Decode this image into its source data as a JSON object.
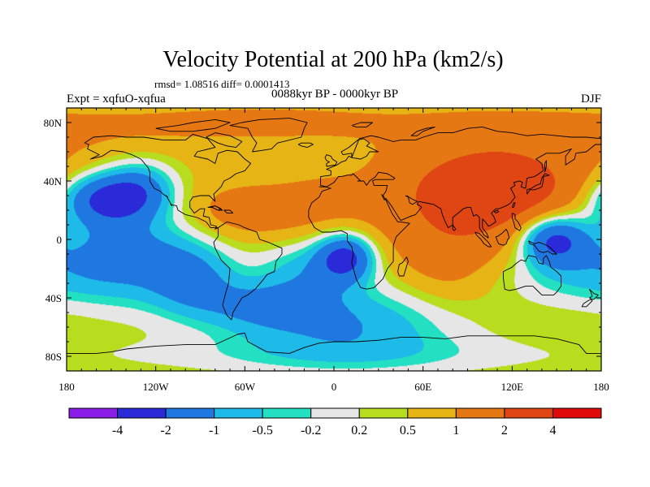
{
  "chart_data": {
    "type": "heatmap",
    "title": "Velocity Potential at 200 hPa (km2/s)",
    "stats": "rmsd= 1.08516 diff= 0.0001413",
    "left_label": "Expt = xqfuO-xqfua",
    "center_label": "0088kyr BP - 0000kyr BP",
    "right_label": "DJF",
    "projection": "cylindrical equidistant",
    "xlim": [
      -180,
      180
    ],
    "ylim": [
      -90,
      90
    ],
    "x_ticks": [
      {
        "value": -180,
        "label": "180"
      },
      {
        "value": -120,
        "label": "120W"
      },
      {
        "value": -60,
        "label": "60W"
      },
      {
        "value": 0,
        "label": "0"
      },
      {
        "value": 60,
        "label": "60E"
      },
      {
        "value": 120,
        "label": "120E"
      },
      {
        "value": 180,
        "label": "180"
      }
    ],
    "y_ticks": [
      {
        "value": 80,
        "label": "80N"
      },
      {
        "value": 40,
        "label": "40N"
      },
      {
        "value": 0,
        "label": "0"
      },
      {
        "value": -40,
        "label": "40S"
      },
      {
        "value": -80,
        "label": "80S"
      }
    ],
    "levels": [
      -4,
      -2,
      -1,
      -0.5,
      -0.2,
      0.2,
      0.5,
      1,
      2,
      4
    ],
    "level_labels": [
      "-4",
      "-2",
      "-1",
      "-0.5",
      "-0.2",
      "0.2",
      "0.5",
      "1",
      "2",
      "4"
    ],
    "colors": [
      "#8a1ee6",
      "#2a2ad8",
      "#1e78e0",
      "#1ebae8",
      "#24e0c2",
      "#e6e6e6",
      "#b8dc1e",
      "#e6b414",
      "#e67814",
      "#e04614",
      "#e00a0a"
    ],
    "features": [
      {
        "kind": "max",
        "lon": 110,
        "lat": 35,
        "value": 2.6
      },
      {
        "kind": "max",
        "lon": -60,
        "lat": 18,
        "value": 1.5
      },
      {
        "kind": "min",
        "lon": 148,
        "lat": 0,
        "value": -2.4
      },
      {
        "kind": "min",
        "lon": -150,
        "lat": 28,
        "value": -2.2
      },
      {
        "kind": "min",
        "lon": 8,
        "lat": -12,
        "value": -2.1
      }
    ]
  }
}
